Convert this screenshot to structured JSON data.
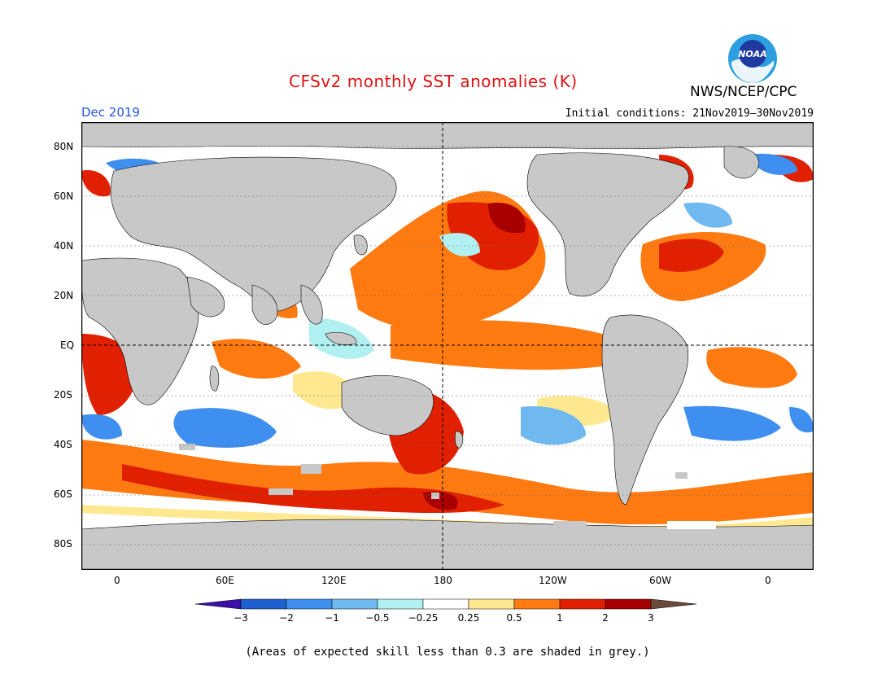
{
  "header": {
    "title": "CFSv2 monthly SST anomalies (K)",
    "org": "NWS/NCEP/CPC",
    "month": "Dec 2019",
    "initial_conditions": "Initial conditions: 21Nov2019–30Nov2019"
  },
  "logo": {
    "text": "NOAA",
    "icon": "noaa-logo"
  },
  "map": {
    "lat_labels": [
      "80N",
      "60N",
      "40N",
      "20N",
      "EQ",
      "20S",
      "40S",
      "60S",
      "80S"
    ],
    "lon_labels": [
      "0",
      "60E",
      "120E",
      "180",
      "120W",
      "60W",
      "0"
    ],
    "land_color": "#c8c8c8",
    "reference_lines": "dashed equator and 180° meridian"
  },
  "colorbar": {
    "ticks": [
      "−3",
      "−2",
      "−1",
      "−0.5",
      "−0.25",
      "0.25",
      "0.5",
      "1",
      "2",
      "3"
    ],
    "colors": [
      "#3b0fa8",
      "#1f5fd0",
      "#3f8ff0",
      "#70b8f0",
      "#b0f0f0",
      "#ffffff",
      "#ffe890",
      "#ff7a10",
      "#e02000",
      "#a80000",
      "#6b4a3a"
    ]
  },
  "footnote": "(Areas of expected skill less than 0.3 are shaded in grey.)"
}
